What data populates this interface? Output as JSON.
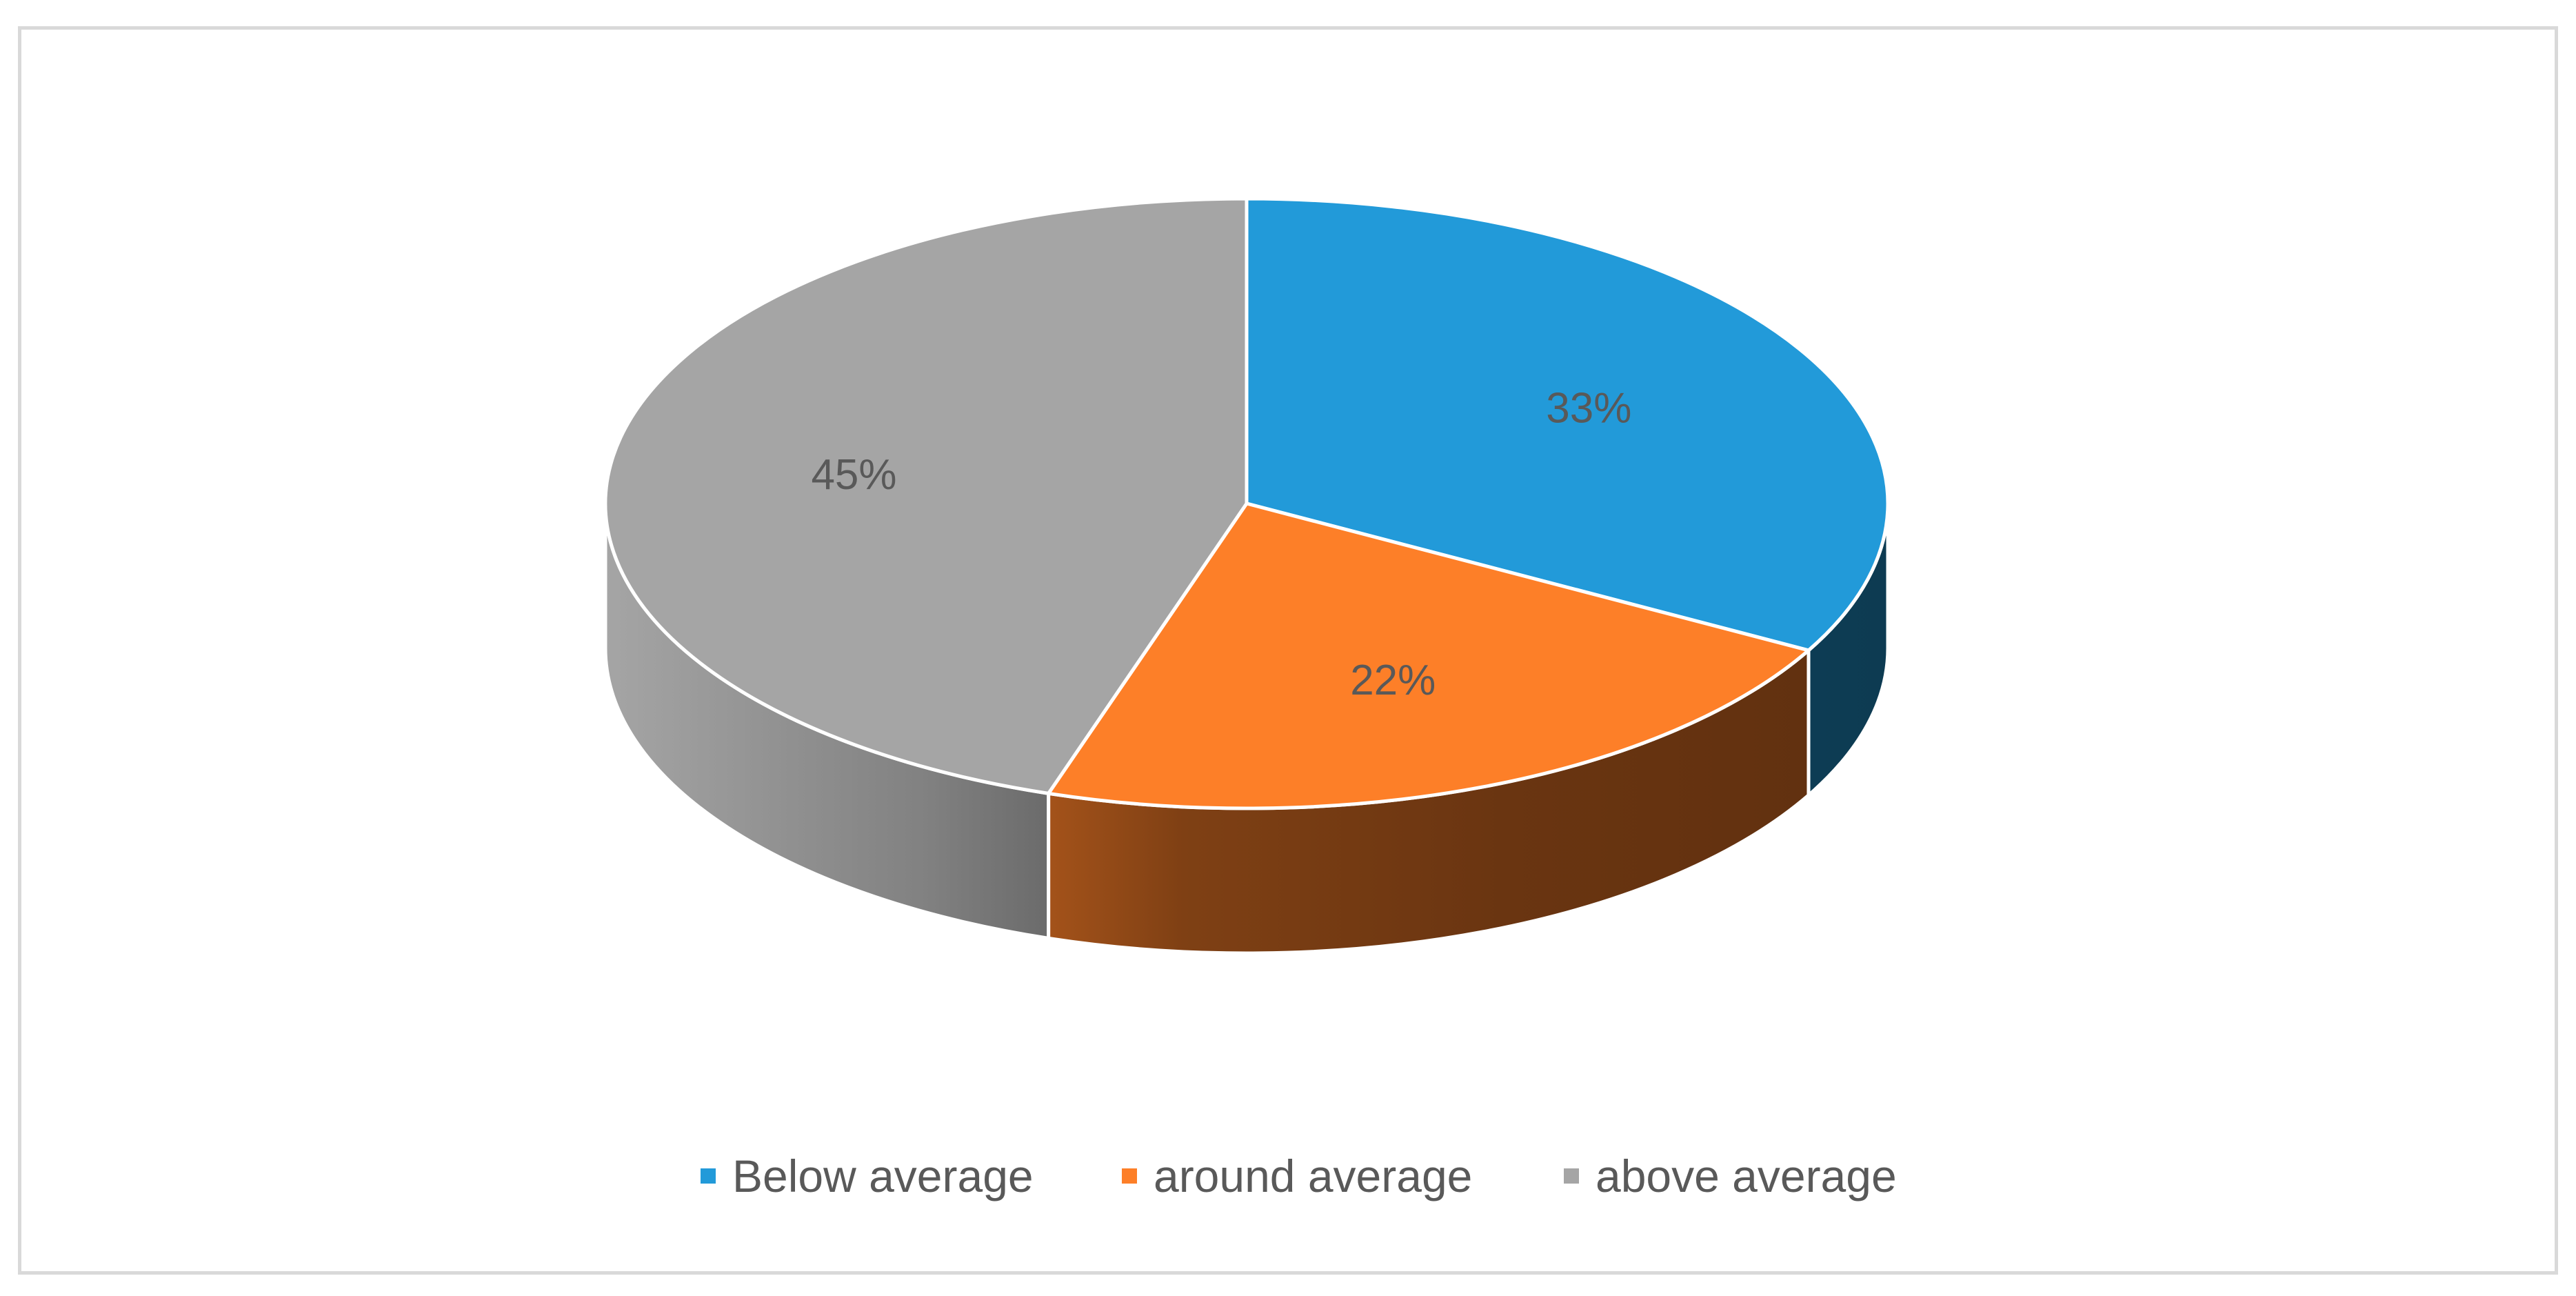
{
  "chart_data": {
    "type": "pie",
    "style": "3d",
    "title": "",
    "categories": [
      "Below average",
      "around average",
      "above average"
    ],
    "values": [
      33,
      22,
      45
    ],
    "labels": [
      "33%",
      "22%",
      "45%"
    ],
    "unit": "%",
    "colors": [
      "#229ad9",
      "#fd7f28",
      "#a5a5a5"
    ],
    "side_colors": [
      "#0f4a66",
      "#7a3808",
      "#7c7c7c"
    ],
    "legend_position": "bottom",
    "grid": false
  }
}
